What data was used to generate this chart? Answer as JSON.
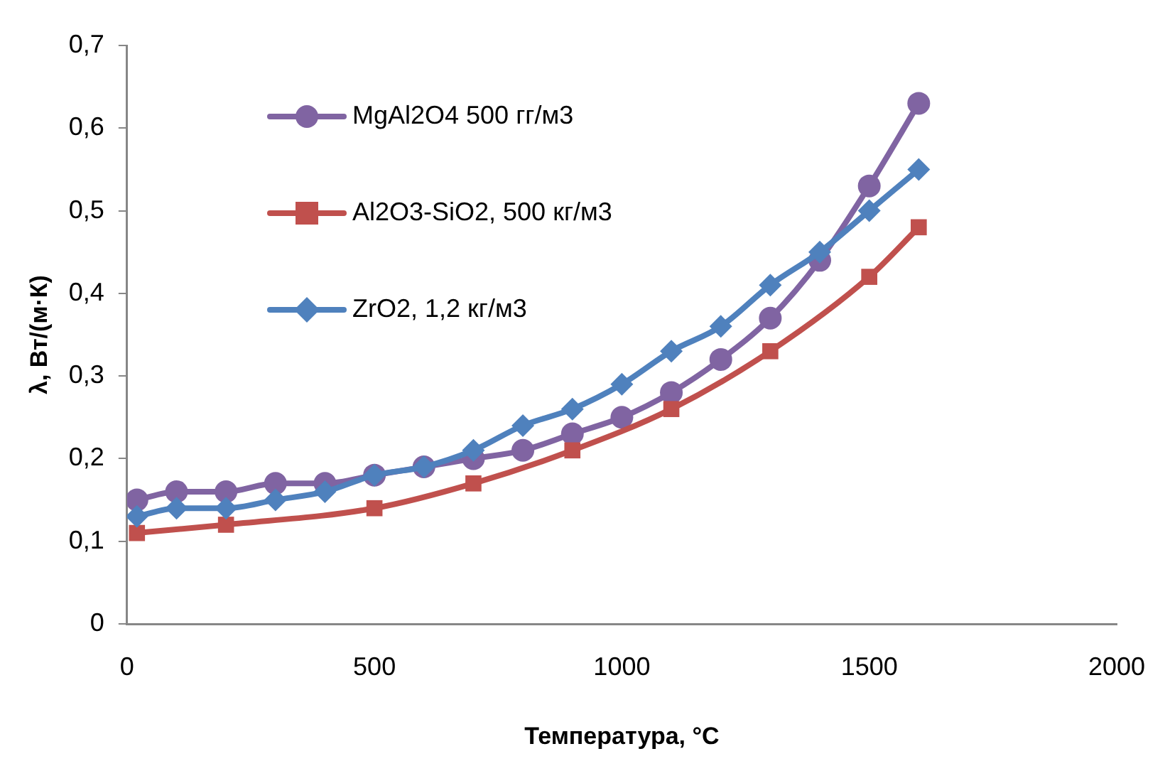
{
  "chart_data": {
    "type": "line",
    "xlabel": "Температура, °C",
    "ylabel": "λ, Вт/(м·К)",
    "xlim": [
      0,
      2000
    ],
    "xticks": [
      0,
      500,
      1000,
      1500,
      2000
    ],
    "ylim": [
      0,
      0.7
    ],
    "yticks": [
      0,
      {
        "value": 0.1,
        "label": "0,1"
      },
      {
        "value": 0.2,
        "label": "0,2"
      },
      {
        "value": 0.3,
        "label": "0,3"
      },
      {
        "value": 0.4,
        "label": "0,4"
      },
      {
        "value": 0.5,
        "label": "0,5"
      },
      {
        "value": 0.6,
        "label": "0,6"
      },
      {
        "value": 0.7,
        "label": "0,7"
      }
    ],
    "grid": false,
    "legend": "top left",
    "series": [
      {
        "name": "MgAl2O4 500 гг/м3",
        "color": "#8064a2",
        "marker": "circle",
        "x": [
          20,
          100,
          200,
          300,
          400,
          500,
          600,
          700,
          800,
          900,
          1000,
          1100,
          1200,
          1300,
          1400,
          1500,
          1600
        ],
        "values": [
          0.15,
          0.16,
          0.16,
          0.17,
          0.17,
          0.18,
          0.19,
          0.2,
          0.21,
          0.23,
          0.25,
          0.28,
          0.32,
          0.37,
          0.44,
          0.53,
          0.63
        ]
      },
      {
        "name": "Al2O3-SiO2, 500 кг/м3",
        "color": "#c0504d",
        "marker": "square",
        "x": [
          20,
          200,
          500,
          700,
          900,
          1100,
          1300,
          1500,
          1600
        ],
        "values": [
          0.11,
          0.12,
          0.14,
          0.17,
          0.21,
          0.26,
          0.33,
          0.42,
          0.48
        ]
      },
      {
        "name": "ZrO2, 1,2 кг/м3",
        "color": "#4f81bd",
        "marker": "diamond",
        "x": [
          20,
          100,
          200,
          300,
          400,
          500,
          600,
          700,
          800,
          900,
          1000,
          1100,
          1200,
          1300,
          1400,
          1500,
          1600
        ],
        "values": [
          0.13,
          0.14,
          0.14,
          0.15,
          0.16,
          0.18,
          0.19,
          0.21,
          0.24,
          0.26,
          0.29,
          0.33,
          0.36,
          0.41,
          0.45,
          0.5,
          0.55
        ]
      }
    ]
  }
}
